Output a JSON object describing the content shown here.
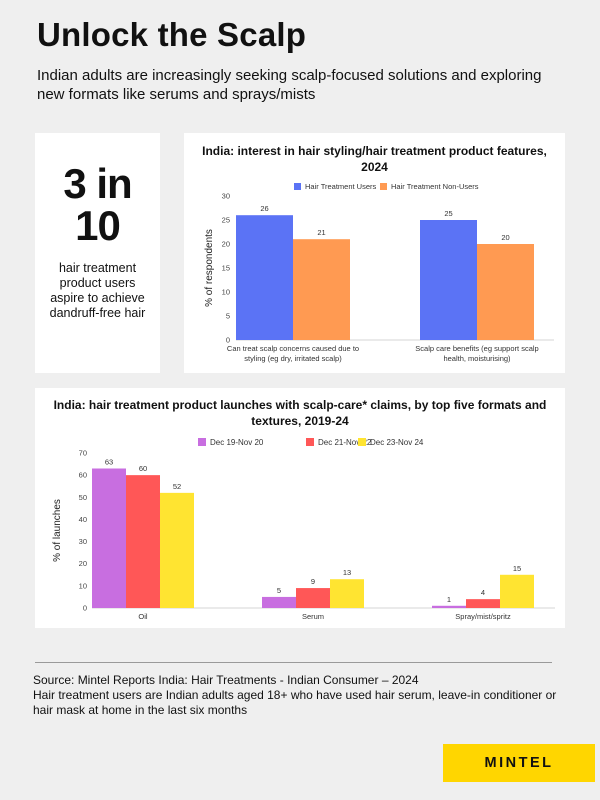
{
  "title": "Unlock the Scalp",
  "subtitle": "Indian adults are increasingly seeking scalp-focused solutions and exploring new formats like serums and sprays/mists",
  "stat": {
    "line1": "3 in",
    "line2": "10",
    "text": "hair treatment product users aspire to achieve dandruff-free hair"
  },
  "footer": {
    "source": "Source: Mintel Reports India: Hair Treatments - Indian Consumer – 2024",
    "note": "Hair treatment users are Indian adults aged 18+ who have used hair serum,  leave-in conditioner or hair mask at home in the last six months"
  },
  "logo": "MINTEL",
  "colors": {
    "users": "#5b73f5",
    "non_users": "#ff9a52",
    "dec19": "#c86ee0",
    "dec21": "#ff5757",
    "dec23": "#ffe431",
    "logo_bg": "#ffd600"
  },
  "chart_data": [
    {
      "type": "bar",
      "title": "India: interest in hair styling/hair treatment product features, 2024",
      "ylabel": "% of respondents",
      "ylim": [
        0,
        30
      ],
      "yticks": [
        0,
        5,
        10,
        15,
        20,
        25,
        30
      ],
      "legend": "top",
      "categories": [
        [
          "Can treat scalp concerns caused due to",
          "styling (eg dry, irritated scalp)"
        ],
        [
          "Scalp care benefits  (eg support scalp",
          "health, moisturising)"
        ]
      ],
      "series": [
        {
          "name": "Hair Treatment Users",
          "values": [
            26,
            25
          ],
          "color": "#5b73f5"
        },
        {
          "name": "Hair Treatment Non-Users",
          "values": [
            21,
            20
          ],
          "color": "#ff9a52"
        }
      ]
    },
    {
      "type": "bar",
      "title": "India: hair treatment product launches with scalp-care* claims, by top five formats and textures, 2019-24",
      "ylabel": "% of launches",
      "ylim": [
        0,
        70
      ],
      "yticks": [
        0,
        10,
        20,
        30,
        40,
        50,
        60,
        70
      ],
      "legend": "top",
      "categories": [
        [
          "Oil"
        ],
        [
          "Serum"
        ],
        [
          "Spray/mist/spritz"
        ]
      ],
      "series": [
        {
          "name": "Dec 19-Nov 20",
          "values": [
            63,
            5,
            1
          ],
          "color": "#c86ee0"
        },
        {
          "name": "Dec 21-Nov 22",
          "values": [
            60,
            9,
            4
          ],
          "color": "#ff5757"
        },
        {
          "name": "Dec 23-Nov 24",
          "values": [
            52,
            13,
            15
          ],
          "color": "#ffe431"
        }
      ]
    }
  ]
}
